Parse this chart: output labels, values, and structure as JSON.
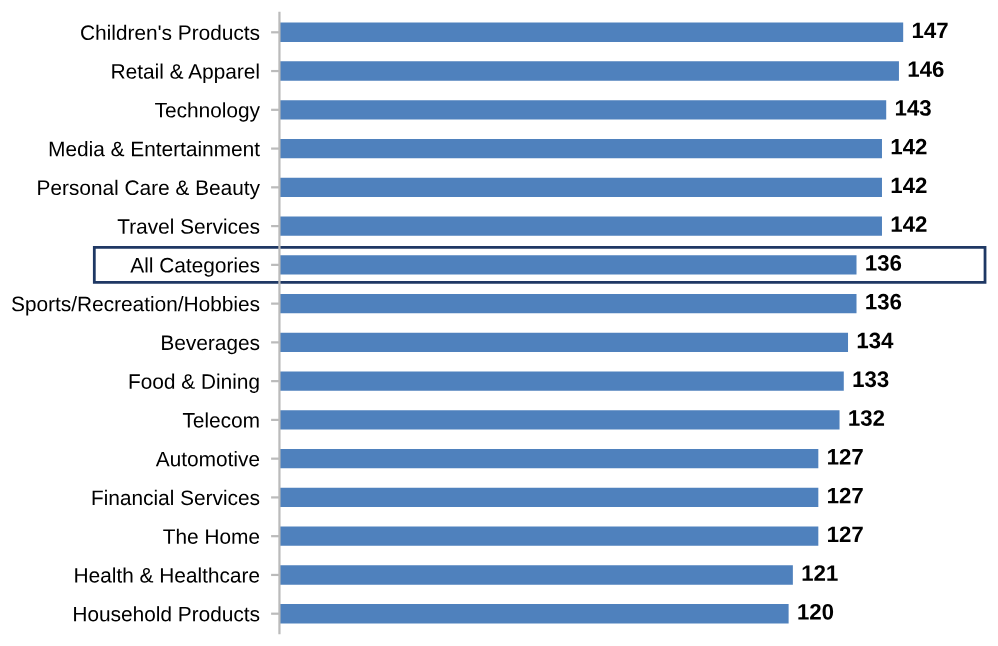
{
  "chart_data": {
    "type": "bar",
    "orientation": "horizontal",
    "categories": [
      "Children's Products",
      "Retail & Apparel",
      "Technology",
      "Media & Entertainment",
      "Personal Care & Beauty",
      "Travel Services",
      "All Categories",
      "Sports/Recreation/Hobbies",
      "Beverages",
      "Food & Dining",
      "Telecom",
      "Automotive",
      "Financial Services",
      "The Home",
      "Health & Healthcare",
      "Household Products"
    ],
    "values": [
      147,
      146,
      143,
      142,
      142,
      142,
      136,
      136,
      134,
      133,
      132,
      127,
      127,
      127,
      121,
      120
    ],
    "color": "#4f81bd",
    "data_labels": true,
    "grid": false,
    "legend": false,
    "tick_labels": "y"
  }
}
